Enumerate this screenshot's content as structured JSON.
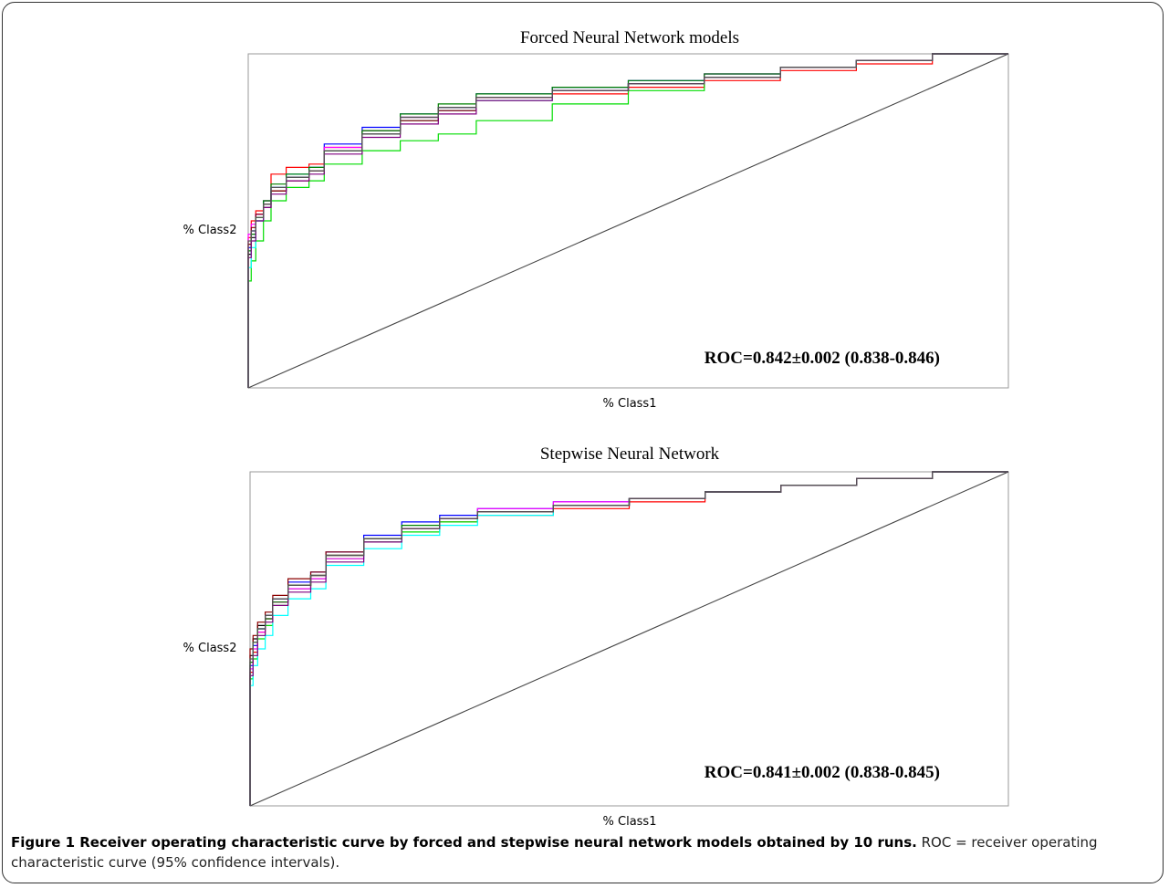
{
  "chart_data": [
    {
      "type": "line",
      "title": "Forced Neural Network models",
      "xlabel": "% Class1",
      "ylabel": "% Class2",
      "xlim": [
        0,
        1
      ],
      "ylim": [
        0,
        1
      ],
      "annotation": "ROC=0.842±0.002 (0.838-0.846)",
      "colors": [
        "#ff0000",
        "#00dd00",
        "#0000ff",
        "#000000",
        "#ff00ff",
        "#00ffff",
        "#8b0000",
        "#008000",
        "#800080",
        "#555555"
      ],
      "reference_line": [
        [
          0,
          0
        ],
        [
          1,
          1
        ]
      ],
      "series": [
        {
          "x": [
            0,
            0.004,
            0.01,
            0.02,
            0.03,
            0.05,
            0.08,
            0.1,
            0.15,
            0.2,
            0.25,
            0.3,
            0.4,
            0.5,
            0.6,
            0.7,
            0.8,
            0.9,
            1
          ],
          "y": [
            0,
            0.45,
            0.5,
            0.53,
            0.56,
            0.64,
            0.66,
            0.67,
            0.72,
            0.77,
            0.8,
            0.83,
            0.86,
            0.88,
            0.9,
            0.92,
            0.95,
            0.97,
            1
          ]
        },
        {
          "x": [
            0,
            0.004,
            0.01,
            0.02,
            0.03,
            0.05,
            0.08,
            0.1,
            0.15,
            0.2,
            0.25,
            0.3,
            0.4,
            0.5,
            0.6,
            0.7,
            0.8,
            0.9,
            1
          ],
          "y": [
            0,
            0.32,
            0.38,
            0.44,
            0.5,
            0.56,
            0.6,
            0.62,
            0.67,
            0.71,
            0.74,
            0.76,
            0.8,
            0.85,
            0.89,
            0.93,
            0.96,
            0.98,
            1
          ]
        },
        {
          "x": [
            0,
            0.004,
            0.01,
            0.02,
            0.03,
            0.05,
            0.08,
            0.1,
            0.15,
            0.2,
            0.25,
            0.3,
            0.4,
            0.5,
            0.6,
            0.7,
            0.8,
            0.9,
            1
          ],
          "y": [
            0,
            0.42,
            0.47,
            0.52,
            0.56,
            0.6,
            0.63,
            0.66,
            0.73,
            0.78,
            0.82,
            0.84,
            0.88,
            0.9,
            0.92,
            0.94,
            0.96,
            0.98,
            1
          ]
        },
        {
          "x": [
            0,
            0.004,
            0.01,
            0.02,
            0.03,
            0.05,
            0.08,
            0.1,
            0.15,
            0.2,
            0.25,
            0.3,
            0.4,
            0.5,
            0.6,
            0.7,
            0.8,
            0.9,
            1
          ],
          "y": [
            0,
            0.4,
            0.45,
            0.5,
            0.54,
            0.59,
            0.63,
            0.65,
            0.71,
            0.76,
            0.81,
            0.84,
            0.87,
            0.89,
            0.91,
            0.93,
            0.96,
            0.98,
            1
          ]
        },
        {
          "x": [
            0,
            0.004,
            0.01,
            0.02,
            0.03,
            0.05,
            0.08,
            0.1,
            0.15,
            0.2,
            0.25,
            0.3,
            0.4,
            0.5,
            0.6,
            0.7,
            0.8,
            0.9,
            1
          ],
          "y": [
            0,
            0.46,
            0.49,
            0.52,
            0.55,
            0.6,
            0.64,
            0.66,
            0.72,
            0.77,
            0.81,
            0.83,
            0.87,
            0.89,
            0.91,
            0.94,
            0.96,
            0.98,
            1
          ]
        },
        {
          "x": [
            0,
            0.004,
            0.01,
            0.02,
            0.03,
            0.05,
            0.08,
            0.1,
            0.15,
            0.2,
            0.25,
            0.3,
            0.4,
            0.5,
            0.6,
            0.7,
            0.8,
            0.9,
            1
          ],
          "y": [
            0,
            0.36,
            0.42,
            0.5,
            0.55,
            0.6,
            0.64,
            0.66,
            0.71,
            0.77,
            0.8,
            0.83,
            0.86,
            0.89,
            0.91,
            0.93,
            0.96,
            0.98,
            1
          ]
        },
        {
          "x": [
            0,
            0.004,
            0.01,
            0.02,
            0.03,
            0.05,
            0.08,
            0.1,
            0.15,
            0.2,
            0.25,
            0.3,
            0.4,
            0.5,
            0.6,
            0.7,
            0.8,
            0.9,
            1
          ],
          "y": [
            0,
            0.43,
            0.48,
            0.52,
            0.55,
            0.59,
            0.62,
            0.65,
            0.71,
            0.77,
            0.8,
            0.83,
            0.87,
            0.89,
            0.91,
            0.93,
            0.96,
            0.98,
            1
          ]
        },
        {
          "x": [
            0,
            0.004,
            0.01,
            0.02,
            0.03,
            0.05,
            0.08,
            0.1,
            0.15,
            0.2,
            0.25,
            0.3,
            0.4,
            0.5,
            0.6,
            0.7,
            0.8,
            0.9,
            1
          ],
          "y": [
            0,
            0.41,
            0.46,
            0.51,
            0.56,
            0.61,
            0.64,
            0.66,
            0.71,
            0.77,
            0.82,
            0.85,
            0.88,
            0.9,
            0.92,
            0.94,
            0.96,
            0.98,
            1
          ]
        },
        {
          "x": [
            0,
            0.004,
            0.01,
            0.02,
            0.03,
            0.05,
            0.08,
            0.1,
            0.15,
            0.2,
            0.25,
            0.3,
            0.4,
            0.5,
            0.6,
            0.7,
            0.8,
            0.9,
            1
          ],
          "y": [
            0,
            0.39,
            0.44,
            0.5,
            0.54,
            0.58,
            0.62,
            0.64,
            0.7,
            0.75,
            0.79,
            0.82,
            0.86,
            0.89,
            0.91,
            0.93,
            0.96,
            0.98,
            1
          ]
        },
        {
          "x": [
            0,
            0.004,
            0.01,
            0.02,
            0.03,
            0.05,
            0.08,
            0.1,
            0.15,
            0.2,
            0.25,
            0.3,
            0.4,
            0.5,
            0.6,
            0.7,
            0.8,
            0.9,
            1
          ],
          "y": [
            0,
            0.44,
            0.47,
            0.51,
            0.55,
            0.6,
            0.63,
            0.65,
            0.71,
            0.76,
            0.81,
            0.84,
            0.87,
            0.89,
            0.91,
            0.93,
            0.96,
            0.98,
            1
          ]
        }
      ]
    },
    {
      "type": "line",
      "title": "Stepwise Neural Network",
      "xlabel": "% Class1",
      "ylabel": "% Class2",
      "xlim": [
        0,
        1
      ],
      "ylim": [
        0,
        1
      ],
      "annotation": "ROC=0.841±0.002 (0.838-0.845)",
      "colors": [
        "#ff0000",
        "#00dd00",
        "#0000ff",
        "#000000",
        "#ff00ff",
        "#00ffff",
        "#8b0000",
        "#008000",
        "#800080",
        "#555555"
      ],
      "reference_line": [
        [
          0,
          0
        ],
        [
          1,
          1
        ]
      ],
      "series": [
        {
          "x": [
            0,
            0.004,
            0.01,
            0.02,
            0.03,
            0.05,
            0.08,
            0.1,
            0.15,
            0.2,
            0.25,
            0.3,
            0.4,
            0.5,
            0.6,
            0.7,
            0.8,
            0.9,
            1
          ],
          "y": [
            0,
            0.4,
            0.46,
            0.52,
            0.56,
            0.61,
            0.66,
            0.69,
            0.75,
            0.8,
            0.83,
            0.85,
            0.87,
            0.89,
            0.91,
            0.94,
            0.96,
            0.98,
            1
          ]
        },
        {
          "x": [
            0,
            0.004,
            0.01,
            0.02,
            0.03,
            0.05,
            0.08,
            0.1,
            0.15,
            0.2,
            0.25,
            0.3,
            0.4,
            0.5,
            0.6,
            0.7,
            0.8,
            0.9,
            1
          ],
          "y": [
            0,
            0.38,
            0.44,
            0.5,
            0.54,
            0.6,
            0.65,
            0.68,
            0.74,
            0.79,
            0.82,
            0.85,
            0.88,
            0.9,
            0.92,
            0.94,
            0.96,
            0.98,
            1
          ]
        },
        {
          "x": [
            0,
            0.004,
            0.01,
            0.02,
            0.03,
            0.05,
            0.08,
            0.1,
            0.15,
            0.2,
            0.25,
            0.3,
            0.4,
            0.5,
            0.6,
            0.7,
            0.8,
            0.9,
            1
          ],
          "y": [
            0,
            0.42,
            0.48,
            0.53,
            0.57,
            0.62,
            0.67,
            0.7,
            0.76,
            0.81,
            0.85,
            0.87,
            0.89,
            0.91,
            0.92,
            0.94,
            0.96,
            0.98,
            1
          ]
        },
        {
          "x": [
            0,
            0.004,
            0.01,
            0.02,
            0.03,
            0.05,
            0.08,
            0.1,
            0.15,
            0.2,
            0.25,
            0.3,
            0.4,
            0.5,
            0.6,
            0.7,
            0.8,
            0.9,
            1
          ],
          "y": [
            0,
            0.45,
            0.5,
            0.54,
            0.57,
            0.62,
            0.66,
            0.69,
            0.75,
            0.8,
            0.83,
            0.86,
            0.88,
            0.9,
            0.92,
            0.94,
            0.96,
            0.98,
            1
          ]
        },
        {
          "x": [
            0,
            0.004,
            0.01,
            0.02,
            0.03,
            0.05,
            0.08,
            0.1,
            0.15,
            0.2,
            0.25,
            0.3,
            0.4,
            0.5,
            0.6,
            0.7,
            0.8,
            0.9,
            1
          ],
          "y": [
            0,
            0.41,
            0.47,
            0.52,
            0.56,
            0.61,
            0.65,
            0.68,
            0.74,
            0.8,
            0.83,
            0.86,
            0.89,
            0.91,
            0.92,
            0.94,
            0.96,
            0.98,
            1
          ]
        },
        {
          "x": [
            0,
            0.004,
            0.01,
            0.02,
            0.03,
            0.05,
            0.08,
            0.1,
            0.15,
            0.2,
            0.25,
            0.3,
            0.4,
            0.5,
            0.6,
            0.7,
            0.8,
            0.9,
            1
          ],
          "y": [
            0,
            0.36,
            0.42,
            0.47,
            0.51,
            0.57,
            0.62,
            0.65,
            0.72,
            0.77,
            0.81,
            0.84,
            0.87,
            0.9,
            0.92,
            0.94,
            0.96,
            0.98,
            1
          ]
        },
        {
          "x": [
            0,
            0.004,
            0.01,
            0.02,
            0.03,
            0.05,
            0.08,
            0.1,
            0.15,
            0.2,
            0.25,
            0.3,
            0.4,
            0.5,
            0.6,
            0.7,
            0.8,
            0.9,
            1
          ],
          "y": [
            0,
            0.47,
            0.51,
            0.55,
            0.58,
            0.63,
            0.68,
            0.7,
            0.76,
            0.8,
            0.83,
            0.86,
            0.88,
            0.9,
            0.92,
            0.94,
            0.96,
            0.98,
            1
          ]
        },
        {
          "x": [
            0,
            0.004,
            0.01,
            0.02,
            0.03,
            0.05,
            0.08,
            0.1,
            0.15,
            0.2,
            0.25,
            0.3,
            0.4,
            0.5,
            0.6,
            0.7,
            0.8,
            0.9,
            1
          ],
          "y": [
            0,
            0.43,
            0.49,
            0.53,
            0.56,
            0.61,
            0.66,
            0.69,
            0.75,
            0.8,
            0.84,
            0.86,
            0.88,
            0.9,
            0.92,
            0.94,
            0.96,
            0.98,
            1
          ]
        },
        {
          "x": [
            0,
            0.004,
            0.01,
            0.02,
            0.03,
            0.05,
            0.08,
            0.1,
            0.15,
            0.2,
            0.25,
            0.3,
            0.4,
            0.5,
            0.6,
            0.7,
            0.8,
            0.9,
            1
          ],
          "y": [
            0,
            0.39,
            0.45,
            0.51,
            0.55,
            0.6,
            0.64,
            0.67,
            0.73,
            0.79,
            0.83,
            0.86,
            0.88,
            0.9,
            0.92,
            0.94,
            0.96,
            0.98,
            1
          ]
        },
        {
          "x": [
            0,
            0.004,
            0.01,
            0.02,
            0.03,
            0.05,
            0.08,
            0.1,
            0.15,
            0.2,
            0.25,
            0.3,
            0.4,
            0.5,
            0.6,
            0.7,
            0.8,
            0.9,
            1
          ],
          "y": [
            0,
            0.44,
            0.49,
            0.53,
            0.57,
            0.62,
            0.66,
            0.69,
            0.75,
            0.8,
            0.83,
            0.86,
            0.88,
            0.9,
            0.92,
            0.94,
            0.96,
            0.98,
            1
          ]
        }
      ]
    }
  ],
  "caption": {
    "bold": "Figure 1 Receiver operating characteristic curve by forced and stepwise neural network models obtained by 10 runs.",
    "text": " ROC = receiver operating characteristic curve (95% confidence intervals)."
  }
}
